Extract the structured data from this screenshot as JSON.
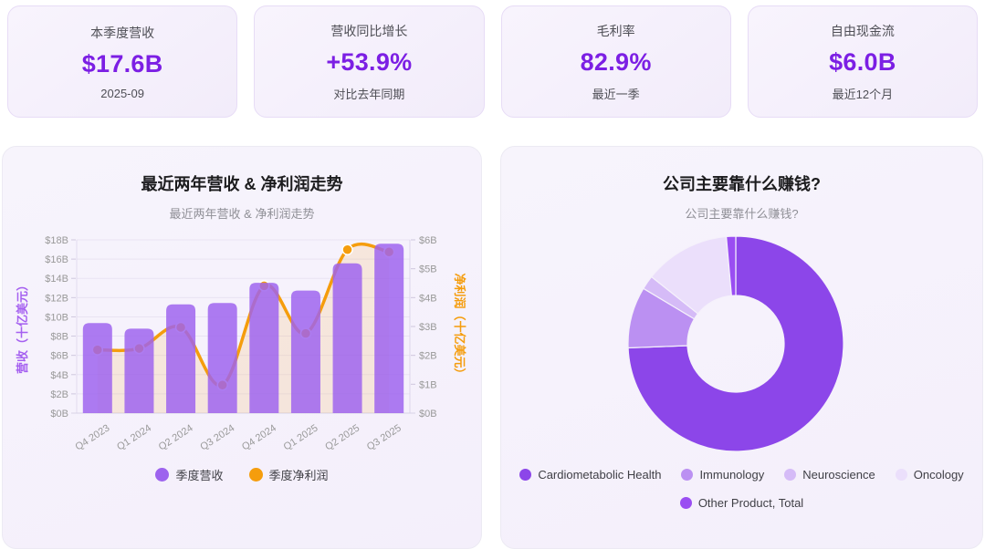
{
  "kpi_cards": [
    {
      "label": "本季度营收",
      "value": "$17.6B",
      "sub": "2025-09"
    },
    {
      "label": "营收同比增长",
      "value": "+53.9%",
      "sub": "对比去年同期"
    },
    {
      "label": "毛利率",
      "value": "82.9%",
      "sub": "最近一季"
    },
    {
      "label": "自由现金流",
      "value": "$6.0B",
      "sub": "最近12个月"
    }
  ],
  "colors": {
    "accent_value": "#7c1fe4",
    "bar": "#9d63ee",
    "bar_background_band": "#f9ecdf",
    "line": "#f59d0d",
    "grid": "#e9e3f3",
    "axis_text": "#999999",
    "panel_bg": "#f6f2fb"
  },
  "chart_data": [
    {
      "type": "bar",
      "combo": "bar+line-dual-axis",
      "title": "最近两年营收 & 净利润走势",
      "subtitle": "最近两年营收 & 净利润走势",
      "categories": [
        "Q4 2023",
        "Q1 2024",
        "Q2 2024",
        "Q3 2024",
        "Q4 2024",
        "Q1 2025",
        "Q2 2025",
        "Q3 2025"
      ],
      "series": [
        {
          "name": "季度营收",
          "type": "bar",
          "yaxis": "left",
          "color": "#9d63ee",
          "values": [
            9.35,
            8.77,
            11.3,
            11.44,
            13.53,
            12.73,
            15.56,
            17.6
          ]
        },
        {
          "name": "季度净利润",
          "type": "line",
          "yaxis": "right",
          "color": "#f59d0d",
          "values": [
            2.19,
            2.24,
            2.97,
            0.97,
            4.41,
            2.76,
            5.66,
            5.58
          ]
        }
      ],
      "left_axis": {
        "title": "营收（十亿美元）",
        "min": 0,
        "max": 18,
        "step": 2,
        "prefix": "$",
        "suffix": "B",
        "color": "#a560f0"
      },
      "right_axis": {
        "title": "净利润（十亿美元）",
        "min": 0,
        "max": 6,
        "step": 1,
        "prefix": "$",
        "suffix": "B",
        "color": "#f59d0d"
      },
      "grid": true,
      "legend_position": "bottom",
      "xlabel_rotation": -33
    },
    {
      "type": "pie",
      "donut": true,
      "title": "公司主要靠什么赚钱?",
      "subtitle": "公司主要靠什么赚钱?",
      "legend_position": "bottom",
      "segments": [
        {
          "label": "Cardiometabolic Health",
          "share_pct": 74.4,
          "color": "#8c46e9"
        },
        {
          "label": "Immunology",
          "share_pct": 9.2,
          "color": "#bb90f2"
        },
        {
          "label": "Neuroscience",
          "share_pct": 2.1,
          "color": "#d5bbf7"
        },
        {
          "label": "Oncology",
          "share_pct": 12.9,
          "color": "#ebdffb"
        },
        {
          "label": "Other Product, Total",
          "share_pct": 1.4,
          "color": "#9a4df2"
        }
      ]
    }
  ]
}
